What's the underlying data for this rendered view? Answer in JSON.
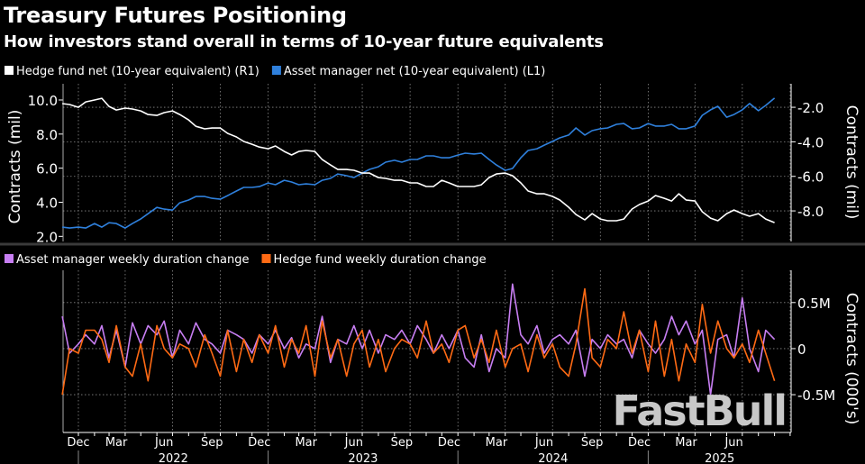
{
  "header": {
    "title": "Treasury Futures Positioning",
    "subtitle": "How investors stand overall in terms of 10-year future equivalents"
  },
  "watermark": "FastBull",
  "chart_data": [
    {
      "type": "line",
      "legend_position": "top-left",
      "grid": true,
      "x": [
        "2021-12-01",
        "2021-12-15",
        "2022-01-01",
        "2022-01-15",
        "2022-02-01",
        "2022-02-15",
        "2022-03-01",
        "2022-03-15",
        "2022-04-01",
        "2022-04-15",
        "2022-05-01",
        "2022-05-15",
        "2022-06-01",
        "2022-06-15",
        "2022-07-01",
        "2022-07-15",
        "2022-08-01",
        "2022-08-15",
        "2022-09-01",
        "2022-09-15",
        "2022-10-01",
        "2022-10-15",
        "2022-11-01",
        "2022-11-15",
        "2022-12-01",
        "2022-12-15",
        "2023-01-01",
        "2023-01-15",
        "2023-02-01",
        "2023-02-15",
        "2023-03-01",
        "2023-03-15",
        "2023-04-01",
        "2023-04-15",
        "2023-05-01",
        "2023-05-15",
        "2023-06-01",
        "2023-06-15",
        "2023-07-01",
        "2023-07-15",
        "2023-08-01",
        "2023-08-15",
        "2023-09-01",
        "2023-09-15",
        "2023-10-01",
        "2023-10-15",
        "2023-11-01",
        "2023-11-15",
        "2023-12-01",
        "2023-12-15",
        "2024-01-01",
        "2024-01-15",
        "2024-02-01",
        "2024-02-15",
        "2024-03-01",
        "2024-03-15",
        "2024-04-01",
        "2024-04-15",
        "2024-05-01",
        "2024-05-15",
        "2024-06-01",
        "2024-06-15",
        "2024-07-01",
        "2024-07-15",
        "2024-08-01",
        "2024-08-15",
        "2024-09-01",
        "2024-09-15",
        "2024-10-01",
        "2024-10-15",
        "2024-11-01",
        "2024-11-15",
        "2024-12-01",
        "2024-12-15",
        "2025-01-01",
        "2025-01-15",
        "2025-02-01",
        "2025-02-15",
        "2025-03-01",
        "2025-03-15",
        "2025-04-01",
        "2025-04-15",
        "2025-05-01",
        "2025-05-15",
        "2025-06-01",
        "2025-06-15",
        "2025-07-01",
        "2025-07-15",
        "2025-08-01",
        "2025-08-15",
        "2025-09-01"
      ],
      "x_tick_labels": [
        {
          "label": "Dec",
          "date": "2021-12-15"
        },
        {
          "label": "Mar",
          "date": "2022-03-15"
        },
        {
          "label": "Jun",
          "date": "2022-06-15"
        },
        {
          "label": "Sep",
          "date": "2022-09-15"
        },
        {
          "label": "Dec",
          "date": "2022-12-15"
        },
        {
          "label": "Mar",
          "date": "2023-03-15"
        },
        {
          "label": "Jun",
          "date": "2023-06-15"
        },
        {
          "label": "Sep",
          "date": "2023-09-15"
        },
        {
          "label": "Dec",
          "date": "2023-12-15"
        },
        {
          "label": "Mar",
          "date": "2024-03-15"
        },
        {
          "label": "Jun",
          "date": "2024-06-15"
        },
        {
          "label": "Sep",
          "date": "2024-09-15"
        },
        {
          "label": "Dec",
          "date": "2024-12-15"
        },
        {
          "label": "Mar",
          "date": "2025-03-15"
        },
        {
          "label": "Jun",
          "date": "2025-06-15"
        }
      ],
      "x_year_labels": [
        "2022",
        "2023",
        "2024",
        "2025"
      ],
      "y_left": {
        "label": "Contracts (mil)",
        "ticks": [
          "10.0",
          "8.0",
          "6.0",
          "4.0",
          "2.0"
        ],
        "range": [
          1.7,
          10.95
        ]
      },
      "y_right": {
        "label": "Contracts (mil)",
        "ticks": [
          "-2.0",
          "-4.0",
          "-6.0",
          "-8.0"
        ],
        "range": [
          -9.77,
          -0.64
        ]
      },
      "series": [
        {
          "name": "Hedge fund net (10-year equivalent) (R1)",
          "axis": "right",
          "color": "#ffffff",
          "values": [
            -1.79,
            -1.84,
            -2.0,
            -1.69,
            -1.58,
            -1.48,
            -1.95,
            -2.16,
            -2.05,
            -2.1,
            -2.21,
            -2.42,
            -2.47,
            -2.31,
            -2.21,
            -2.42,
            -2.73,
            -3.1,
            -3.25,
            -3.2,
            -3.2,
            -3.51,
            -3.72,
            -3.98,
            -4.14,
            -4.3,
            -4.4,
            -4.24,
            -4.56,
            -4.76,
            -4.56,
            -4.5,
            -4.56,
            -5.03,
            -5.34,
            -5.6,
            -5.6,
            -5.65,
            -5.81,
            -5.81,
            -6.07,
            -6.12,
            -6.23,
            -6.23,
            -6.38,
            -6.38,
            -6.59,
            -6.59,
            -6.23,
            -6.38,
            -6.59,
            -6.59,
            -6.59,
            -6.49,
            -6.07,
            -5.86,
            -5.81,
            -5.96,
            -6.38,
            -6.85,
            -7.01,
            -7.01,
            -7.16,
            -7.37,
            -7.79,
            -8.21,
            -8.52,
            -8.16,
            -8.47,
            -8.57,
            -8.57,
            -8.47,
            -7.89,
            -7.63,
            -7.43,
            -7.11,
            -7.27,
            -7.43,
            -7.01,
            -7.37,
            -7.43,
            -8.05,
            -8.42,
            -8.57,
            -8.16,
            -7.95,
            -8.16,
            -8.31,
            -8.16,
            -8.47,
            -8.68
          ]
        },
        {
          "name": "Asset manager net (10-year equivalent) (L1)",
          "axis": "left",
          "color": "#2f80dc",
          "values": [
            2.54,
            2.49,
            2.54,
            2.49,
            2.75,
            2.54,
            2.8,
            2.75,
            2.49,
            2.75,
            3.02,
            3.33,
            3.7,
            3.6,
            3.54,
            3.97,
            4.13,
            4.34,
            4.34,
            4.23,
            4.18,
            4.39,
            4.66,
            4.87,
            4.87,
            4.92,
            5.13,
            5.03,
            5.29,
            5.19,
            5.03,
            5.08,
            5.03,
            5.29,
            5.4,
            5.66,
            5.56,
            5.45,
            5.71,
            5.93,
            6.08,
            6.35,
            6.46,
            6.35,
            6.51,
            6.51,
            6.72,
            6.72,
            6.61,
            6.61,
            6.77,
            6.88,
            6.83,
            6.88,
            6.51,
            6.19,
            5.87,
            5.98,
            6.61,
            7.04,
            7.14,
            7.35,
            7.57,
            7.78,
            7.94,
            8.36,
            7.94,
            8.2,
            8.31,
            8.36,
            8.57,
            8.62,
            8.31,
            8.36,
            8.62,
            8.47,
            8.47,
            8.57,
            8.31,
            8.31,
            8.47,
            9.1,
            9.42,
            9.63,
            8.99,
            9.15,
            9.42,
            9.79,
            9.37,
            9.68,
            10.11
          ]
        }
      ]
    },
    {
      "type": "line",
      "legend_position": "top-left",
      "grid": true,
      "x_ref": "same as first chart",
      "y_right": {
        "label": "Contracts (000's)",
        "ticks": [
          "0.5M",
          "0",
          "-0.5M"
        ],
        "tick_values": [
          0.5,
          0,
          -0.5
        ],
        "range": [
          -0.91,
          0.85
        ]
      },
      "series": [
        {
          "name": "Asset manager weekly duration change",
          "color": "#c77ef2",
          "values": [
            0.35,
            -0.05,
            0.05,
            0.15,
            0.05,
            0.25,
            -0.1,
            0.2,
            -0.2,
            0.28,
            0.05,
            0.25,
            0.15,
            0.3,
            -0.1,
            0.2,
            0.05,
            0.28,
            0.1,
            0.05,
            -0.05,
            0.2,
            0.15,
            0.1,
            -0.05,
            0.15,
            0.05,
            0.2,
            0.0,
            0.12,
            -0.1,
            0.05,
            0.0,
            0.35,
            -0.15,
            0.1,
            0.05,
            0.25,
            0.0,
            0.2,
            -0.05,
            0.15,
            0.1,
            0.2,
            0.05,
            0.25,
            0.1,
            -0.05,
            0.15,
            0.0,
            0.2,
            -0.1,
            -0.2,
            0.15,
            -0.25,
            0.0,
            -0.1,
            0.7,
            0.15,
            0.05,
            0.25,
            -0.05,
            0.1,
            0.15,
            0.05,
            0.2,
            -0.3,
            0.1,
            0.0,
            0.15,
            0.05,
            0.1,
            -0.1,
            0.2,
            0.05,
            -0.05,
            0.1,
            0.35,
            0.15,
            0.3,
            0.05,
            0.2,
            -0.5,
            0.1,
            0.15,
            -0.1,
            0.55,
            0.0,
            -0.25,
            0.2,
            0.1
          ]
        },
        {
          "name": "Hedge fund weekly duration change",
          "color": "#ff6a14",
          "values": [
            -0.5,
            0.0,
            -0.05,
            0.2,
            0.2,
            0.1,
            -0.15,
            0.25,
            -0.2,
            -0.3,
            0.05,
            -0.35,
            0.25,
            0.0,
            -0.1,
            0.05,
            0.0,
            -0.2,
            0.15,
            -0.05,
            -0.3,
            0.2,
            -0.25,
            0.1,
            -0.15,
            0.15,
            -0.05,
            0.25,
            -0.2,
            0.1,
            -0.05,
            0.25,
            -0.3,
            0.3,
            -0.1,
            0.1,
            -0.3,
            0.05,
            0.2,
            -0.2,
            0.1,
            -0.25,
            0.0,
            0.1,
            0.05,
            -0.1,
            0.3,
            -0.05,
            0.05,
            -0.15,
            0.2,
            0.25,
            -0.1,
            0.1,
            -0.15,
            0.2,
            -0.2,
            0.0,
            0.05,
            -0.25,
            0.15,
            -0.1,
            0.05,
            -0.2,
            -0.3,
            0.05,
            0.65,
            -0.1,
            -0.2,
            0.1,
            0.0,
            0.4,
            -0.05,
            0.2,
            -0.25,
            0.3,
            -0.3,
            0.1,
            -0.35,
            0.05,
            -0.15,
            0.48,
            -0.05,
            0.3,
            0.0,
            -0.1,
            0.05,
            -0.15,
            0.2,
            -0.05,
            -0.35
          ]
        }
      ]
    }
  ]
}
